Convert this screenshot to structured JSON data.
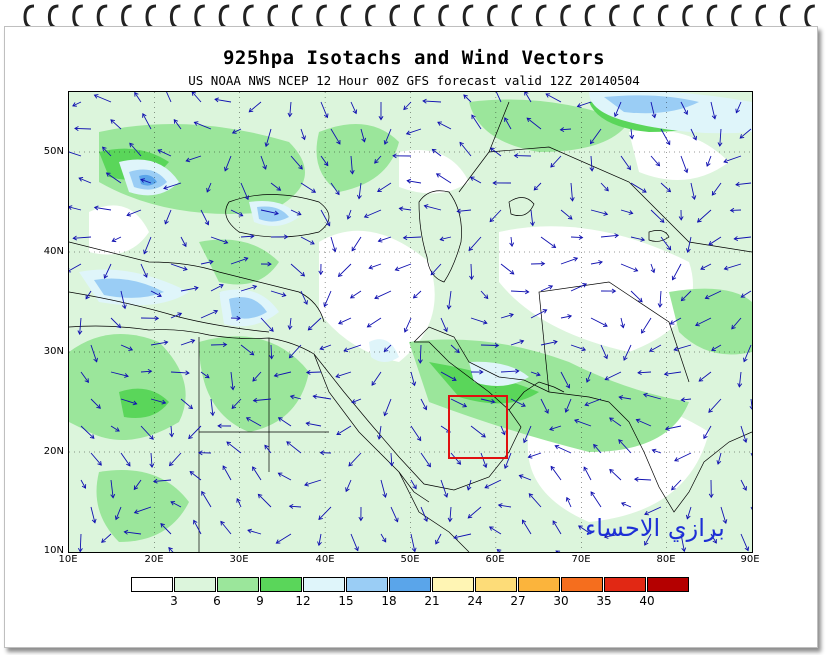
{
  "title": "925hpa Isotachs and Wind Vectors",
  "subtitle": "US NOAA NWS NCEP 12 Hour 00Z GFS forecast valid 12Z 20140504",
  "watermark": "برازي الاحساء",
  "map": {
    "lon_range": [
      10,
      90
    ],
    "lat_range": [
      10,
      56
    ],
    "lat_ticks": [
      "50N",
      "40N",
      "30N",
      "20N",
      "10N"
    ],
    "lon_ticks": [
      "10E",
      "20E",
      "30E",
      "40E",
      "50E",
      "60E",
      "70E",
      "80E",
      "90E"
    ],
    "highlight_box": {
      "lon": [
        54,
        61
      ],
      "lat": [
        19.5,
        26
      ]
    },
    "highlight_color": "#e01010",
    "vector_color": "#1010b0"
  },
  "legend": {
    "labels": [
      "3",
      "6",
      "9",
      "12",
      "15",
      "18",
      "21",
      "24",
      "27",
      "30",
      "35",
      "40"
    ],
    "colors": [
      "#ffffff",
      "#dcf5dc",
      "#9be69b",
      "#5ad65a",
      "#dff5fa",
      "#9acdf5",
      "#5aa5ea",
      "#fff5b4",
      "#fddc78",
      "#fbb43c",
      "#f56e1e",
      "#e12814",
      "#b40000"
    ]
  }
}
